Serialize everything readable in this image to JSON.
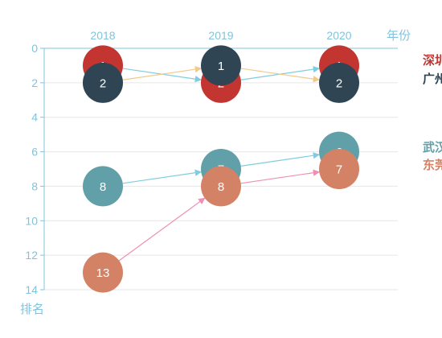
{
  "chart_data": {
    "type": "line",
    "title": "",
    "x": [
      "2018",
      "2019",
      "2020"
    ],
    "xlabel": "年份",
    "ylabel": "排名",
    "ylim": [
      0,
      14
    ],
    "y_inverted": true,
    "y_ticks": [
      0,
      2,
      4,
      6,
      8,
      10,
      12,
      14
    ],
    "grid": true,
    "series": [
      {
        "name": "深圳",
        "values": [
          1,
          2,
          1
        ],
        "color": "#c23531"
      },
      {
        "name": "广州",
        "values": [
          2,
          1,
          2
        ],
        "color": "#2f4554"
      },
      {
        "name": "武汉",
        "values": [
          8,
          7,
          6
        ],
        "color": "#61a0a8"
      },
      {
        "name": "东莞",
        "values": [
          13,
          8,
          7
        ],
        "color": "#d48265"
      }
    ],
    "legend_position": "right (clipped)"
  }
}
